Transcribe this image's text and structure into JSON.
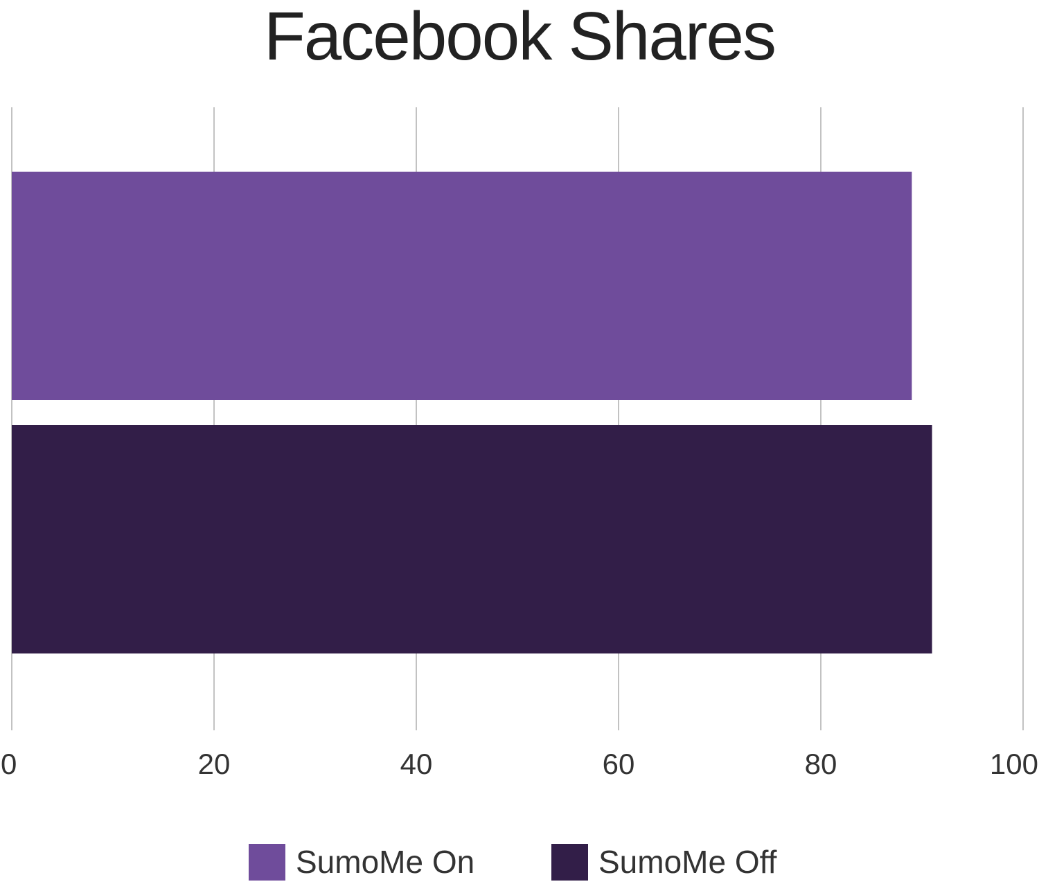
{
  "chart_data": {
    "type": "bar",
    "orientation": "horizontal",
    "title": "Facebook Shares",
    "xlabel": "",
    "ylabel": "",
    "xlim": [
      0,
      100
    ],
    "ticks": [
      "0",
      "20",
      "40",
      "60",
      "80",
      "100"
    ],
    "tick_values": [
      0,
      20,
      40,
      60,
      80,
      100
    ],
    "grid": true,
    "legend_position": "bottom",
    "series": [
      {
        "name": "SumoMe On",
        "value": 89,
        "color": "#6f4c9b"
      },
      {
        "name": "SumoMe Off",
        "value": 91,
        "color": "#321e48"
      }
    ]
  }
}
